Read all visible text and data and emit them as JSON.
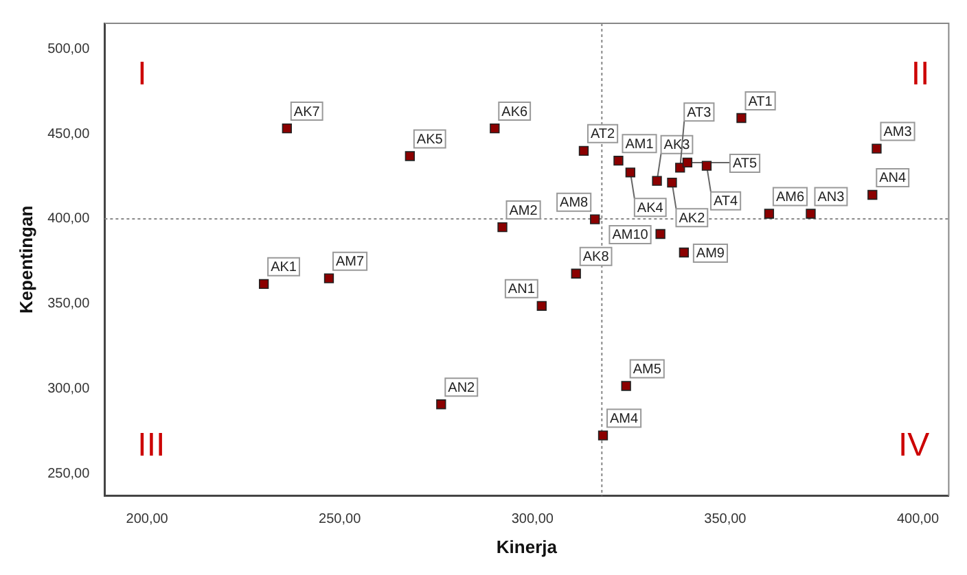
{
  "chart_data": {
    "type": "scatter",
    "xlabel": "Kinerja",
    "ylabel": "Kepentingan",
    "x": [
      236.3,
      268.2,
      290.2,
      292.2,
      230.3,
      247.2,
      276.3,
      354.2,
      313.3,
      322.3,
      325.4,
      332.3,
      336.2,
      338.3,
      340.2,
      345.2,
      333.2,
      316.2,
      339.3,
      311.3,
      361.4,
      372.2,
      389.3,
      388.2,
      302.4,
      324.3,
      318.3
    ],
    "series": [
      {
        "color": "#8b0000",
        "values": [
          453.2,
          436.9,
          453.2,
          395.1,
          361.7,
          365.0,
          290.9,
          459.3,
          440.0,
          434.2,
          427.3,
          422.3,
          421.3,
          430.1,
          433.1,
          431.2,
          391.1,
          399.7,
          380.2,
          367.8,
          403.0,
          403.0,
          441.3,
          414.1,
          348.8,
          301.7,
          272.6
        ]
      }
    ],
    "marker": "square",
    "xlim": [
      189,
      408
    ],
    "ylim": [
      237,
      515
    ],
    "xticks": [
      {
        "value": 200,
        "label": "200,00"
      },
      {
        "value": 250,
        "label": "250,00"
      },
      {
        "value": 300,
        "label": "300,00"
      },
      {
        "value": 350,
        "label": "350,00"
      },
      {
        "value": 400,
        "label": "400,00"
      }
    ],
    "yticks": [
      {
        "value": 250,
        "label": "250,00"
      },
      {
        "value": 300,
        "label": "300,00"
      },
      {
        "value": 350,
        "label": "350,00"
      },
      {
        "value": 400,
        "label": "400,00"
      },
      {
        "value": 450,
        "label": "450,00"
      },
      {
        "value": 500,
        "label": "500,00"
      }
    ],
    "grid": false,
    "legend": false,
    "ref_lines": [
      {
        "axis": "x",
        "value": 318,
        "color": "#888888",
        "line_style": "dotted"
      },
      {
        "axis": "y",
        "value": 400,
        "color": "#888888",
        "line_style": "dotted"
      }
    ],
    "annotations": [
      "I",
      "II",
      "III",
      "IV",
      {
        "text": "AK7",
        "x": 236.3,
        "y": 453.2
      },
      {
        "text": "AK5",
        "x": 268.2,
        "y": 436.9
      },
      {
        "text": "AK6",
        "x": 290.2,
        "y": 453.2
      },
      {
        "text": "AM2",
        "x": 292.2,
        "y": 395.1
      },
      {
        "text": "AK1",
        "x": 230.3,
        "y": 361.7
      },
      {
        "text": "AM7",
        "x": 247.2,
        "y": 365.0
      },
      {
        "text": "AN2",
        "x": 276.3,
        "y": 290.9
      },
      {
        "text": "AT1",
        "x": 354.2,
        "y": 459.3
      },
      {
        "text": "AT2",
        "x": 313.3,
        "y": 440.0
      },
      {
        "text": "AM1",
        "x": 322.3,
        "y": 434.2
      },
      {
        "text": "AK4",
        "x": 325.4,
        "y": 427.3
      },
      {
        "text": "AK3",
        "x": 332.3,
        "y": 422.3
      },
      {
        "text": "AK2",
        "x": 336.2,
        "y": 421.3
      },
      {
        "text": "AT3",
        "x": 338.3,
        "y": 430.1
      },
      {
        "text": "AT5",
        "x": 340.2,
        "y": 433.1
      },
      {
        "text": "AT4",
        "x": 345.2,
        "y": 431.2
      },
      {
        "text": "AM10",
        "x": 333.2,
        "y": 391.1
      },
      {
        "text": "AM8",
        "x": 316.2,
        "y": 399.7
      },
      {
        "text": "AM9",
        "x": 339.3,
        "y": 380.2
      },
      {
        "text": "AK8",
        "x": 311.3,
        "y": 367.8
      },
      {
        "text": "AM6",
        "x": 361.4,
        "y": 403.0
      },
      {
        "text": "AN3",
        "x": 372.2,
        "y": 403.0
      },
      {
        "text": "AM3",
        "x": 389.3,
        "y": 441.3
      },
      {
        "text": "AN4",
        "x": 388.2,
        "y": 414.1
      },
      {
        "text": "AN1",
        "x": 302.4,
        "y": 348.8
      },
      {
        "text": "AM5",
        "x": 324.3,
        "y": 301.7
      },
      {
        "text": "AM4",
        "x": 318.3,
        "y": 272.6
      }
    ]
  }
}
